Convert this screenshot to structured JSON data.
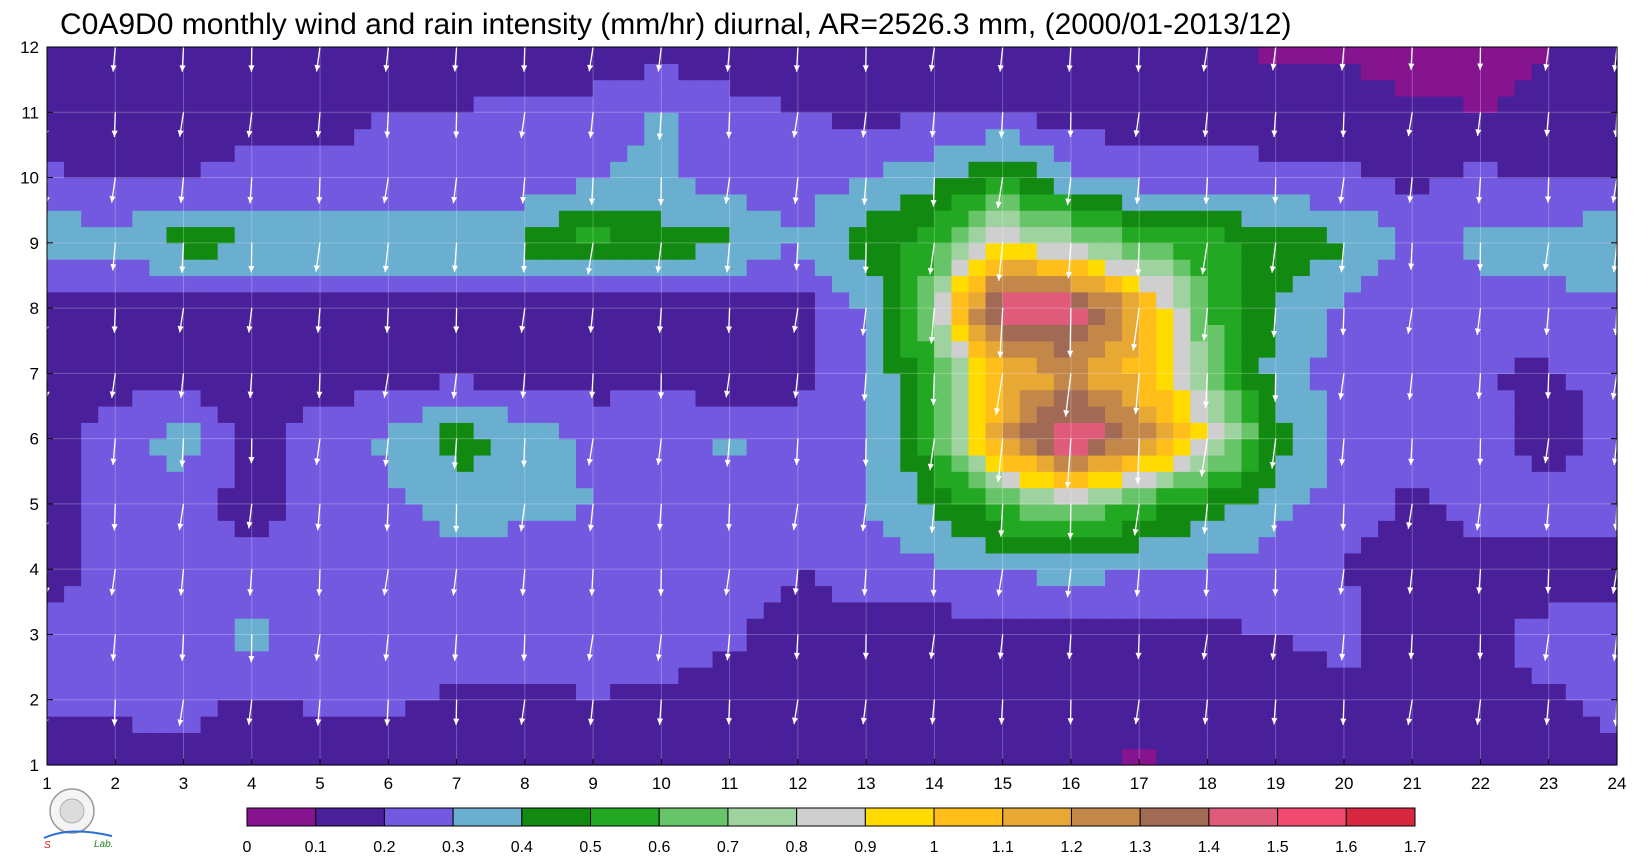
{
  "chart_data": {
    "type": "heatmap",
    "title": "C0A9D0 monthly wind and rain intensity (mm/hr) diurnal, AR=2526.3 mm, (2000/01-2013/12)",
    "xlabel": "",
    "ylabel": "",
    "x": [
      1,
      2,
      3,
      4,
      5,
      6,
      7,
      8,
      9,
      10,
      11,
      12,
      13,
      14,
      15,
      16,
      17,
      18,
      19,
      20,
      21,
      22,
      23,
      24
    ],
    "y": [
      1,
      2,
      3,
      4,
      5,
      6,
      7,
      8,
      9,
      10,
      11,
      12
    ],
    "xlim": [
      1,
      24
    ],
    "ylim": [
      1,
      12
    ],
    "x_ticks": [
      "1",
      "2",
      "3",
      "4",
      "5",
      "6",
      "7",
      "8",
      "9",
      "10",
      "11",
      "12",
      "13",
      "14",
      "15",
      "16",
      "17",
      "18",
      "19",
      "20",
      "21",
      "22",
      "23",
      "24"
    ],
    "y_ticks": [
      "1",
      "2",
      "3",
      "4",
      "5",
      "6",
      "7",
      "8",
      "9",
      "10",
      "11",
      "12"
    ],
    "grid": true,
    "values_note": "rain intensity (mm/hr), rows = y (month) 1..12, columns = x (hour) 1..24",
    "values": [
      [
        0.15,
        0.15,
        0.15,
        0.15,
        0.15,
        0.15,
        0.15,
        0.15,
        0.15,
        0.15,
        0.15,
        0.15,
        0.15,
        0.15,
        0.15,
        0.15,
        0.08,
        0.12,
        0.15,
        0.15,
        0.15,
        0.15,
        0.15,
        0.15
      ],
      [
        0.22,
        0.22,
        0.25,
        0.18,
        0.22,
        0.22,
        0.18,
        0.18,
        0.2,
        0.18,
        0.15,
        0.15,
        0.15,
        0.15,
        0.15,
        0.15,
        0.15,
        0.15,
        0.15,
        0.18,
        0.2,
        0.18,
        0.18,
        0.25
      ],
      [
        0.25,
        0.25,
        0.25,
        0.33,
        0.25,
        0.25,
        0.25,
        0.25,
        0.25,
        0.25,
        0.22,
        0.15,
        0.15,
        0.15,
        0.15,
        0.15,
        0.15,
        0.18,
        0.2,
        0.22,
        0.15,
        0.15,
        0.25,
        0.25
      ],
      [
        0.15,
        0.25,
        0.25,
        0.25,
        0.25,
        0.25,
        0.25,
        0.25,
        0.25,
        0.25,
        0.25,
        0.2,
        0.25,
        0.28,
        0.3,
        0.35,
        0.3,
        0.28,
        0.25,
        0.2,
        0.15,
        0.15,
        0.12,
        0.15
      ],
      [
        0.15,
        0.25,
        0.25,
        0.15,
        0.25,
        0.28,
        0.35,
        0.32,
        0.3,
        0.25,
        0.25,
        0.25,
        0.3,
        0.4,
        0.6,
        0.75,
        0.55,
        0.45,
        0.32,
        0.25,
        0.18,
        0.25,
        0.25,
        0.25
      ],
      [
        0.15,
        0.25,
        0.35,
        0.15,
        0.25,
        0.32,
        0.45,
        0.35,
        0.28,
        0.25,
        0.32,
        0.25,
        0.3,
        0.55,
        1.2,
        1.55,
        1.3,
        0.9,
        0.45,
        0.28,
        0.25,
        0.25,
        0.15,
        0.25
      ],
      [
        0.15,
        0.15,
        0.15,
        0.15,
        0.15,
        0.15,
        0.18,
        0.15,
        0.15,
        0.18,
        0.12,
        0.15,
        0.3,
        0.55,
        1.1,
        1.2,
        1.05,
        0.7,
        0.35,
        0.25,
        0.25,
        0.2,
        0.18,
        0.25
      ],
      [
        0.15,
        0.15,
        0.15,
        0.15,
        0.15,
        0.15,
        0.15,
        0.15,
        0.15,
        0.15,
        0.15,
        0.15,
        0.3,
        0.75,
        1.55,
        1.5,
        1.15,
        0.6,
        0.4,
        0.28,
        0.22,
        0.28,
        0.28,
        0.28
      ],
      [
        0.38,
        0.32,
        0.45,
        0.42,
        0.4,
        0.42,
        0.4,
        0.42,
        0.55,
        0.45,
        0.42,
        0.3,
        0.45,
        0.55,
        0.9,
        0.75,
        0.6,
        0.55,
        0.45,
        0.42,
        0.28,
        0.32,
        0.32,
        0.42
      ],
      [
        0.22,
        0.18,
        0.2,
        0.22,
        0.22,
        0.22,
        0.22,
        0.22,
        0.3,
        0.32,
        0.25,
        0.25,
        0.3,
        0.38,
        0.5,
        0.32,
        0.25,
        0.25,
        0.22,
        0.22,
        0.18,
        0.22,
        0.18,
        0.2
      ],
      [
        0.15,
        0.15,
        0.15,
        0.18,
        0.18,
        0.2,
        0.2,
        0.22,
        0.22,
        0.32,
        0.22,
        0.2,
        0.18,
        0.18,
        0.2,
        0.15,
        0.15,
        0.15,
        0.15,
        0.15,
        0.12,
        0.1,
        0.12,
        0.15
      ],
      [
        0.15,
        0.15,
        0.15,
        0.15,
        0.15,
        0.15,
        0.15,
        0.15,
        0.15,
        0.15,
        0.15,
        0.15,
        0.15,
        0.15,
        0.15,
        0.15,
        0.15,
        0.15,
        0.08,
        0.08,
        0.05,
        0.05,
        0.1,
        0.15
      ]
    ],
    "colorbar": {
      "levels": [
        "0",
        "0.1",
        "0.2",
        "0.3",
        "0.4",
        "0.5",
        "0.6",
        "0.7",
        "0.8",
        "0.9",
        "1",
        "1.1",
        "1.2",
        "1.3",
        "1.4",
        "1.5",
        "1.6",
        "1.7"
      ],
      "colors": [
        "#87148f",
        "#4a1f9a",
        "#7359e0",
        "#6aaed0",
        "#128a12",
        "#22a822",
        "#68c468",
        "#9ed29e",
        "#cfcfcf",
        "#ffdb00",
        "#ffbe1a",
        "#e8a834",
        "#c4874a",
        "#a06a55",
        "#e05a7a",
        "#f04a70",
        "#d82840"
      ]
    },
    "contour_line_color": "#f0a030",
    "wind_vector_color": "#ffffff"
  }
}
